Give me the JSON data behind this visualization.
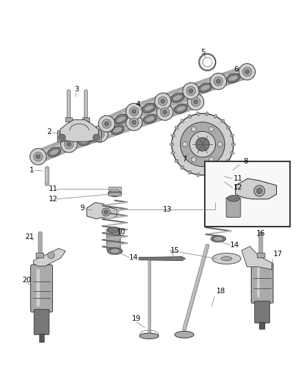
{
  "background_color": "#ffffff",
  "line_color": "#555555",
  "text_color": "#000000",
  "label_fontsize": 7.5,
  "part_color_light": "#d0d0d0",
  "part_color_mid": "#aaaaaa",
  "part_color_dark": "#777777",
  "part_color_darker": "#555555",
  "part_edge": "#333333"
}
